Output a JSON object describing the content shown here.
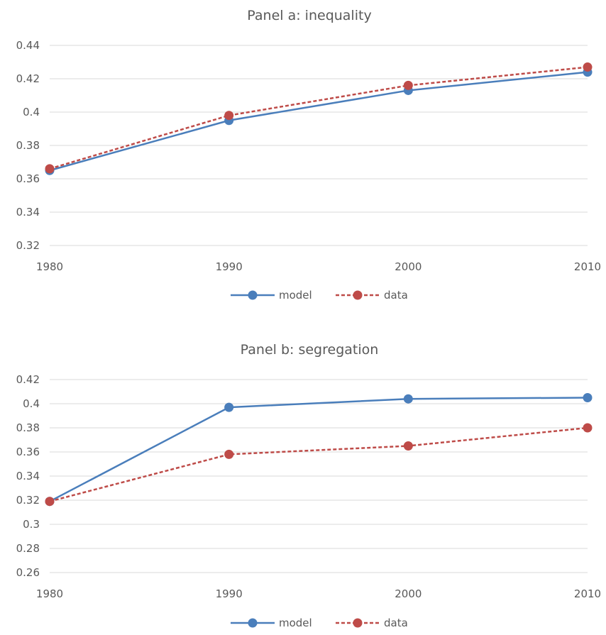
{
  "chart_data": [
    {
      "type": "line",
      "title": "Panel a: inequality",
      "categories": [
        "1980",
        "1990",
        "2000",
        "2010"
      ],
      "ylim": [
        0.32,
        0.44
      ],
      "yticks": [
        "0.32",
        "0.34",
        "0.36",
        "0.38",
        "0.4",
        "0.42",
        "0.44"
      ],
      "ytick_values": [
        0.32,
        0.34,
        0.36,
        0.38,
        0.4,
        0.42,
        0.44
      ],
      "grid": true,
      "legend_position": "bottom",
      "series": [
        {
          "name": "model",
          "values": [
            0.365,
            0.395,
            0.413,
            0.424
          ],
          "color": "#4a7ebb",
          "style": "solid"
        },
        {
          "name": "data",
          "values": [
            0.366,
            0.398,
            0.416,
            0.427
          ],
          "color": "#be4b48",
          "style": "dashed"
        }
      ]
    },
    {
      "type": "line",
      "title": "Panel b: segregation",
      "categories": [
        "1980",
        "1990",
        "2000",
        "2010"
      ],
      "ylim": [
        0.26,
        0.42
      ],
      "yticks": [
        "0.26",
        "0.28",
        "0.3",
        "0.32",
        "0.34",
        "0.36",
        "0.38",
        "0.4",
        "0.42"
      ],
      "ytick_values": [
        0.26,
        0.28,
        0.3,
        0.32,
        0.34,
        0.36,
        0.38,
        0.4,
        0.42
      ],
      "grid": true,
      "legend_position": "bottom",
      "series": [
        {
          "name": "model",
          "values": [
            0.319,
            0.397,
            0.404,
            0.405
          ],
          "color": "#4a7ebb",
          "style": "solid"
        },
        {
          "name": "data",
          "values": [
            0.319,
            0.358,
            0.365,
            0.38
          ],
          "color": "#be4b48",
          "style": "dashed"
        }
      ]
    }
  ]
}
